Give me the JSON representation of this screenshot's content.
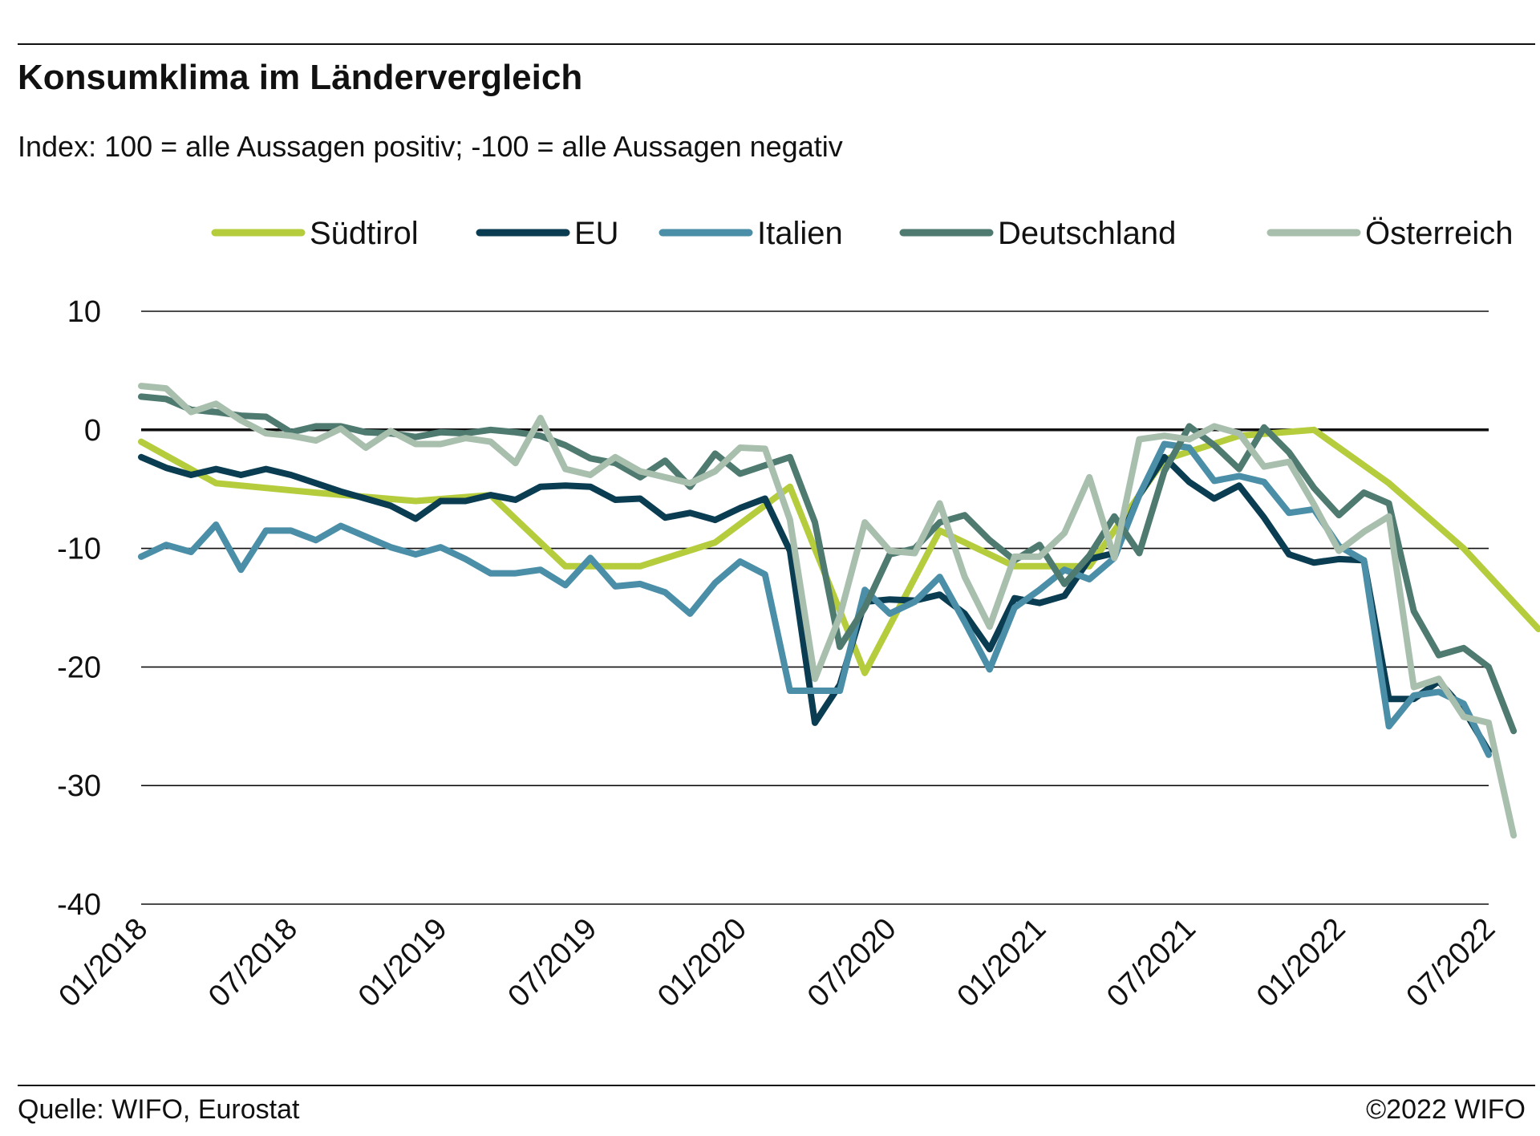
{
  "header": {
    "title": "Konsumklima im Ländervergleich",
    "subtitle": "Index: 100 = alle Aussagen positiv; -100 =  alle Aussagen negativ"
  },
  "footer": {
    "source": "Quelle: WIFO, Eurostat",
    "copyright": "©2022 WIFO"
  },
  "chart_data": {
    "type": "line",
    "title": "Konsumklima im Ländervergleich",
    "subtitle": "Index: 100 = alle Aussagen positiv; -100 =  alle Aussagen negativ",
    "ylim": [
      -40,
      10
    ],
    "yticks": [
      10,
      0,
      -10,
      -20,
      -30,
      -40
    ],
    "ytick_labels": [
      "10",
      "0",
      "-10",
      "-20",
      "-30",
      "-40"
    ],
    "xlim": [
      "01/2018",
      "07/2022"
    ],
    "xtick_labels": [
      "01/2018",
      "07/2018",
      "01/2019",
      "07/2019",
      "01/2020",
      "07/2020",
      "01/2021",
      "07/2021",
      "01/2022",
      "07/2022"
    ],
    "grid": true,
    "zero_line": true,
    "legend_position": "top",
    "series": [
      {
        "name": "Südtirol",
        "color": "#b5cc3c",
        "points": [
          [
            "01/2018",
            -1
          ],
          [
            "04/2018",
            -4.5
          ],
          [
            "08/2018",
            -5.3
          ],
          [
            "12/2018",
            -6
          ],
          [
            "03/2019",
            -5.5
          ],
          [
            "06/2019",
            -11.5
          ],
          [
            "09/2019",
            -11.5
          ],
          [
            "12/2019",
            -9.5
          ],
          [
            "03/2020",
            -4.8
          ],
          [
            "06/2020",
            -20.5
          ],
          [
            "09/2020",
            -8.5
          ],
          [
            "12/2020",
            -11.5
          ],
          [
            "03/2021",
            -11.5
          ],
          [
            "06/2021",
            -2.5
          ],
          [
            "09/2021",
            -0.5
          ],
          [
            "12/2021",
            0
          ],
          [
            "03/2022",
            -4.5
          ],
          [
            "06/2022",
            -10
          ],
          [
            "09/2022",
            -16.8
          ]
        ]
      },
      {
        "name": "EU",
        "color": "#0b3d52",
        "points": [
          [
            "01/2018",
            -2.3
          ],
          [
            "02/2018",
            -3.2
          ],
          [
            "03/2018",
            -3.8
          ],
          [
            "04/2018",
            -3.3
          ],
          [
            "05/2018",
            -3.8
          ],
          [
            "06/2018",
            -3.3
          ],
          [
            "07/2018",
            -3.8
          ],
          [
            "08/2018",
            -4.5
          ],
          [
            "09/2018",
            -5.2
          ],
          [
            "10/2018",
            -5.8
          ],
          [
            "11/2018",
            -6.4
          ],
          [
            "12/2018",
            -7.5
          ],
          [
            "01/2019",
            -6
          ],
          [
            "02/2019",
            -6
          ],
          [
            "03/2019",
            -5.5
          ],
          [
            "04/2019",
            -5.9
          ],
          [
            "05/2019",
            -4.8
          ],
          [
            "06/2019",
            -4.7
          ],
          [
            "07/2019",
            -4.8
          ],
          [
            "08/2019",
            -5.9
          ],
          [
            "09/2019",
            -5.8
          ],
          [
            "10/2019",
            -7.4
          ],
          [
            "11/2019",
            -7
          ],
          [
            "12/2019",
            -7.6
          ],
          [
            "01/2020",
            -6.6
          ],
          [
            "02/2020",
            -5.8
          ],
          [
            "03/2020",
            -10.2
          ],
          [
            "04/2020",
            -24.7
          ],
          [
            "05/2020",
            -21.5
          ],
          [
            "06/2020",
            -14.5
          ],
          [
            "07/2020",
            -14.3
          ],
          [
            "08/2020",
            -14.4
          ],
          [
            "09/2020",
            -13.9
          ],
          [
            "10/2020",
            -15.5
          ],
          [
            "11/2020",
            -18.5
          ],
          [
            "12/2020",
            -14.2
          ],
          [
            "01/2021",
            -14.6
          ],
          [
            "02/2021",
            -14
          ],
          [
            "03/2021",
            -10.9
          ],
          [
            "04/2021",
            -10.4
          ],
          [
            "05/2021",
            -5.5
          ],
          [
            "06/2021",
            -2.3
          ],
          [
            "07/2021",
            -4.4
          ],
          [
            "08/2021",
            -5.8
          ],
          [
            "09/2021",
            -4.7
          ],
          [
            "10/2021",
            -7.4
          ],
          [
            "11/2021",
            -10.5
          ],
          [
            "12/2021",
            -11.2
          ],
          [
            "01/2022",
            -10.9
          ],
          [
            "02/2022",
            -11
          ],
          [
            "03/2022",
            -22.7
          ],
          [
            "04/2022",
            -22.7
          ],
          [
            "05/2022",
            -21.2
          ],
          [
            "06/2022",
            -23.6
          ],
          [
            "07/2022",
            -27.1
          ]
        ]
      },
      {
        "name": "Italien",
        "color": "#4b8ea7",
        "points": [
          [
            "01/2018",
            -10.7
          ],
          [
            "02/2018",
            -9.7
          ],
          [
            "03/2018",
            -10.3
          ],
          [
            "04/2018",
            -8
          ],
          [
            "05/2018",
            -11.8
          ],
          [
            "06/2018",
            -8.5
          ],
          [
            "07/2018",
            -8.5
          ],
          [
            "08/2018",
            -9.3
          ],
          [
            "09/2018",
            -8.1
          ],
          [
            "10/2018",
            -9
          ],
          [
            "11/2018",
            -9.9
          ],
          [
            "12/2018",
            -10.5
          ],
          [
            "01/2019",
            -9.9
          ],
          [
            "02/2019",
            -10.9
          ],
          [
            "03/2019",
            -12.1
          ],
          [
            "04/2019",
            -12.1
          ],
          [
            "05/2019",
            -11.8
          ],
          [
            "06/2019",
            -13.1
          ],
          [
            "07/2019",
            -10.8
          ],
          [
            "08/2019",
            -13.2
          ],
          [
            "09/2019",
            -13
          ],
          [
            "10/2019",
            -13.7
          ],
          [
            "11/2019",
            -15.5
          ],
          [
            "12/2019",
            -12.9
          ],
          [
            "01/2020",
            -11.1
          ],
          [
            "02/2020",
            -12.2
          ],
          [
            "03/2020",
            -22
          ],
          [
            "04/2020",
            -22
          ],
          [
            "05/2020",
            -22
          ],
          [
            "06/2020",
            -13.5
          ],
          [
            "07/2020",
            -15.5
          ],
          [
            "08/2020",
            -14.5
          ],
          [
            "09/2020",
            -12.4
          ],
          [
            "10/2020",
            -16.2
          ],
          [
            "11/2020",
            -20.2
          ],
          [
            "12/2020",
            -15
          ],
          [
            "01/2021",
            -13.5
          ],
          [
            "02/2021",
            -11.8
          ],
          [
            "03/2021",
            -12.6
          ],
          [
            "04/2021",
            -10.8
          ],
          [
            "05/2021",
            -5.5
          ],
          [
            "06/2021",
            -1.2
          ],
          [
            "07/2021",
            -1.5
          ],
          [
            "08/2021",
            -4.3
          ],
          [
            "09/2021",
            -3.9
          ],
          [
            "10/2021",
            -4.4
          ],
          [
            "11/2021",
            -7
          ],
          [
            "12/2021",
            -6.7
          ],
          [
            "01/2022",
            -9.8
          ],
          [
            "02/2022",
            -11
          ],
          [
            "03/2022",
            -25
          ],
          [
            "04/2022",
            -22.4
          ],
          [
            "05/2022",
            -22.1
          ],
          [
            "06/2022",
            -23.1
          ],
          [
            "07/2022",
            -27.4
          ]
        ]
      },
      {
        "name": "Deutschland",
        "color": "#4f7a70",
        "points": [
          [
            "01/2018",
            2.8
          ],
          [
            "02/2018",
            2.6
          ],
          [
            "03/2018",
            1.7
          ],
          [
            "04/2018",
            1.5
          ],
          [
            "05/2018",
            1.2
          ],
          [
            "06/2018",
            1.1
          ],
          [
            "07/2018",
            -0.2
          ],
          [
            "08/2018",
            0.3
          ],
          [
            "09/2018",
            0.3
          ],
          [
            "10/2018",
            -0.2
          ],
          [
            "11/2018",
            -0.3
          ],
          [
            "12/2018",
            -0.6
          ],
          [
            "01/2019",
            -0.2
          ],
          [
            "02/2019",
            -0.3
          ],
          [
            "03/2019",
            0
          ],
          [
            "04/2019",
            -0.2
          ],
          [
            "05/2019",
            -0.5
          ],
          [
            "06/2019",
            -1.3
          ],
          [
            "07/2019",
            -2.4
          ],
          [
            "08/2019",
            -2.8
          ],
          [
            "09/2019",
            -4
          ],
          [
            "10/2019",
            -2.6
          ],
          [
            "11/2019",
            -4.8
          ],
          [
            "12/2019",
            -2
          ],
          [
            "01/2020",
            -3.7
          ],
          [
            "02/2020",
            -3
          ],
          [
            "03/2020",
            -2.3
          ],
          [
            "04/2020",
            -7.8
          ],
          [
            "05/2020",
            -18.3
          ],
          [
            "06/2020",
            -15
          ],
          [
            "07/2020",
            -10.5
          ],
          [
            "08/2020",
            -10
          ],
          [
            "09/2020",
            -7.8
          ],
          [
            "10/2020",
            -7.2
          ],
          [
            "11/2020",
            -9.3
          ],
          [
            "12/2020",
            -11
          ],
          [
            "01/2021",
            -9.7
          ],
          [
            "02/2021",
            -13
          ],
          [
            "03/2021",
            -10.6
          ],
          [
            "04/2021",
            -7.3
          ],
          [
            "05/2021",
            -10.4
          ],
          [
            "06/2021",
            -3.5
          ],
          [
            "07/2021",
            0.3
          ],
          [
            "08/2021",
            -1.3
          ],
          [
            "09/2021",
            -3.3
          ],
          [
            "10/2021",
            0.2
          ],
          [
            "11/2021",
            -1.9
          ],
          [
            "12/2021",
            -4.9
          ],
          [
            "01/2022",
            -7.2
          ],
          [
            "02/2022",
            -5.3
          ],
          [
            "03/2022",
            -6.2
          ],
          [
            "04/2022",
            -15.3
          ],
          [
            "05/2022",
            -19
          ],
          [
            "06/2022",
            -18.4
          ],
          [
            "07/2022",
            -20
          ],
          [
            "08/2022",
            -25.4
          ]
        ]
      },
      {
        "name": "Österreich",
        "color": "#a9bfae",
        "points": [
          [
            "01/2018",
            3.7
          ],
          [
            "02/2018",
            3.5
          ],
          [
            "03/2018",
            1.5
          ],
          [
            "04/2018",
            2.2
          ],
          [
            "05/2018",
            0.8
          ],
          [
            "06/2018",
            -0.3
          ],
          [
            "07/2018",
            -0.5
          ],
          [
            "08/2018",
            -0.9
          ],
          [
            "09/2018",
            0.1
          ],
          [
            "10/2018",
            -1.5
          ],
          [
            "11/2018",
            -0.1
          ],
          [
            "12/2018",
            -1.2
          ],
          [
            "01/2019",
            -1.2
          ],
          [
            "02/2019",
            -0.7
          ],
          [
            "03/2019",
            -1
          ],
          [
            "04/2019",
            -2.8
          ],
          [
            "05/2019",
            1
          ],
          [
            "06/2019",
            -3.3
          ],
          [
            "07/2019",
            -3.8
          ],
          [
            "08/2019",
            -2.3
          ],
          [
            "09/2019",
            -3.5
          ],
          [
            "10/2019",
            -4
          ],
          [
            "11/2019",
            -4.5
          ],
          [
            "12/2019",
            -3.5
          ],
          [
            "01/2020",
            -1.5
          ],
          [
            "02/2020",
            -1.6
          ],
          [
            "03/2020",
            -7.6
          ],
          [
            "04/2020",
            -21
          ],
          [
            "05/2020",
            -15.7
          ],
          [
            "06/2020",
            -7.8
          ],
          [
            "07/2020",
            -10.2
          ],
          [
            "08/2020",
            -10.4
          ],
          [
            "09/2020",
            -6.2
          ],
          [
            "10/2020",
            -12.4
          ],
          [
            "11/2020",
            -16.6
          ],
          [
            "12/2020",
            -10.7
          ],
          [
            "01/2021",
            -10.7
          ],
          [
            "02/2021",
            -8.7
          ],
          [
            "03/2021",
            -4
          ],
          [
            "04/2021",
            -10.8
          ],
          [
            "05/2021",
            -0.8
          ],
          [
            "06/2021",
            -0.5
          ],
          [
            "07/2021",
            -0.8
          ],
          [
            "08/2021",
            0.3
          ],
          [
            "09/2021",
            -0.3
          ],
          [
            "10/2021",
            -3.1
          ],
          [
            "11/2021",
            -2.7
          ],
          [
            "12/2021",
            -6.3
          ],
          [
            "01/2022",
            -10.2
          ],
          [
            "02/2022",
            -8.6
          ],
          [
            "03/2022",
            -7.3
          ],
          [
            "04/2022",
            -21.7
          ],
          [
            "05/2022",
            -21
          ],
          [
            "06/2022",
            -24.2
          ],
          [
            "07/2022",
            -24.7
          ],
          [
            "08/2022",
            -34.2
          ]
        ]
      }
    ]
  }
}
